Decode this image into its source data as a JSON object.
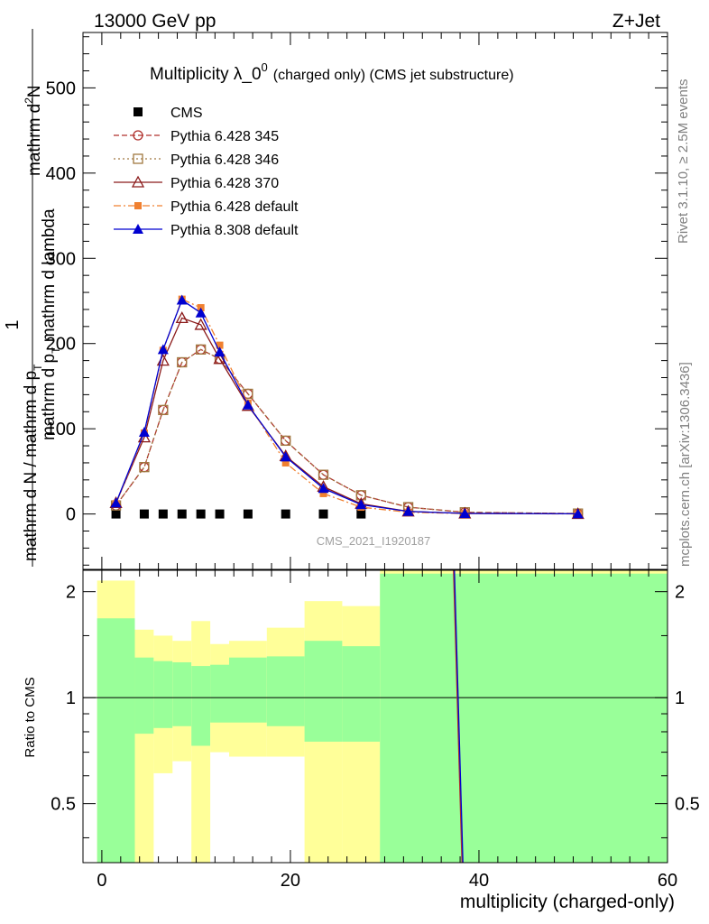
{
  "header": {
    "left": "13000 GeV pp",
    "right": "Z+Jet"
  },
  "side_labels": {
    "rivet": "Rivet 3.1.10, ≥ 2.5M events",
    "mcplots": "mcplots.cern.ch [arXiv:1306.3436]"
  },
  "chart_data": [
    {
      "type": "line",
      "title": "Multiplicity λ_0",
      "title_sup": "0",
      "subtitle": "(charged only) (CMS jet substructure)",
      "ylabel_top": "mathrm d",
      "ylabel_sup": "2",
      "ylabel_top_n": "N",
      "ylabel_bottom": "mathrm d p",
      "ylabel_bottom_sub": "T",
      "ylabel_bottom_rest": " mathrm d lambda",
      "ylabel_factor": "1",
      "ylabel_den": "mathrm d N / mathrm d p",
      "ylabel_den_sub": "T",
      "watermark": "CMS_2021_I1920187",
      "xlim": [
        -2,
        60
      ],
      "ylim": [
        -65,
        565
      ],
      "yticks": [
        0,
        100,
        200,
        300,
        400,
        500
      ],
      "grid": false,
      "legend_position": "top-left",
      "series": [
        {
          "name": "CMS",
          "color": "#000000",
          "marker": "square",
          "dash": "none",
          "x": [
            1.5,
            4.5,
            6.5,
            8.5,
            10.5,
            12.5,
            15.5,
            19.5,
            23.5,
            27.5
          ],
          "y": [
            0,
            0,
            0,
            0,
            0,
            0,
            0,
            0,
            0,
            0
          ]
        },
        {
          "name": "Pythia 6.428 345",
          "color": "#b0302c",
          "marker": "circle-open",
          "dash": "6,3",
          "x": [
            1.5,
            4.5,
            6.5,
            8.5,
            10.5,
            12.5,
            15.5,
            19.5,
            23.5,
            27.5,
            32.5,
            38.5,
            50.5
          ],
          "y": [
            10,
            55,
            122,
            178,
            193,
            182,
            141,
            86,
            46,
            22,
            8,
            2,
            0.5
          ]
        },
        {
          "name": "Pythia 6.428 346",
          "color": "#a07840",
          "marker": "square-open",
          "dash": "2,3",
          "x": [
            1.5,
            4.5,
            6.5,
            8.5,
            10.5,
            12.5,
            15.5,
            19.5,
            23.5,
            27.5,
            32.5,
            38.5,
            50.5
          ],
          "y": [
            10,
            55,
            122,
            178,
            193,
            182,
            141,
            86,
            46,
            22,
            8,
            2,
            0.5
          ]
        },
        {
          "name": "Pythia 6.428 370",
          "color": "#8b1a1a",
          "marker": "triangle-open",
          "dash": "none",
          "x": [
            1.5,
            4.5,
            6.5,
            8.5,
            10.5,
            12.5,
            15.5,
            19.5,
            23.5,
            27.5,
            32.5,
            38.5,
            50.5
          ],
          "y": [
            13,
            90,
            180,
            230,
            222,
            182,
            127,
            68,
            32,
            12,
            3,
            0.7,
            0.2
          ]
        },
        {
          "name": "Pythia 6.428 default",
          "color": "#f08030",
          "marker": "square-filled",
          "dash": "8,3,2,3",
          "x": [
            1.5,
            4.5,
            6.5,
            8.5,
            10.5,
            12.5,
            15.5,
            19.5,
            23.5,
            27.5,
            32.5,
            38.5,
            50.5
          ],
          "y": [
            12,
            95,
            192,
            252,
            242,
            198,
            130,
            60,
            24,
            8,
            2,
            0.5,
            0.1
          ]
        },
        {
          "name": "Pythia 8.308 default",
          "color": "#0000d0",
          "marker": "triangle-filled",
          "dash": "none",
          "x": [
            1.5,
            4.5,
            6.5,
            8.5,
            10.5,
            12.5,
            15.5,
            19.5,
            23.5,
            27.5,
            32.5,
            38.5,
            50.5
          ],
          "y": [
            13,
            96,
            193,
            251,
            236,
            190,
            128,
            67,
            30,
            11,
            3,
            0.7,
            0.2
          ]
        }
      ]
    },
    {
      "type": "area",
      "ylabel": "Ratio to CMS",
      "xlabel": "multiplicity (charged-only)",
      "xlim": [
        -2,
        60
      ],
      "ylim": [
        0.34,
        2.3
      ],
      "scale": "log",
      "xticks": [
        0,
        20,
        40,
        60
      ],
      "yticks": [
        0.5,
        1,
        2
      ],
      "ytick_labels": [
        "0.5",
        "1",
        "2"
      ],
      "reference_line": 1,
      "bands": {
        "green_color": "#99ff99",
        "yellow_color": "#ffff99",
        "bins": [
          {
            "lo": -0.5,
            "hi": 3.5,
            "stat_lo": 0.3,
            "stat_hi": 1.68,
            "tot_lo": 0.3,
            "tot_hi": 2.15
          },
          {
            "lo": 3.5,
            "hi": 5.5,
            "stat_lo": 0.79,
            "stat_hi": 1.3,
            "tot_lo": 0.34,
            "tot_hi": 1.56
          },
          {
            "lo": 5.5,
            "hi": 7.5,
            "stat_lo": 0.82,
            "stat_hi": 1.27,
            "tot_lo": 0.61,
            "tot_hi": 1.5
          },
          {
            "lo": 7.5,
            "hi": 9.5,
            "stat_lo": 0.83,
            "stat_hi": 1.26,
            "tot_lo": 0.66,
            "tot_hi": 1.45
          },
          {
            "lo": 9.5,
            "hi": 11.5,
            "stat_lo": 0.73,
            "stat_hi": 1.23,
            "tot_lo": 0.33,
            "tot_hi": 1.65
          },
          {
            "lo": 11.5,
            "hi": 13.5,
            "stat_lo": 0.85,
            "stat_hi": 1.24,
            "tot_lo": 0.7,
            "tot_hi": 1.42
          },
          {
            "lo": 13.5,
            "hi": 17.5,
            "stat_lo": 0.85,
            "stat_hi": 1.3,
            "tot_lo": 0.68,
            "tot_hi": 1.45
          },
          {
            "lo": 17.5,
            "hi": 21.5,
            "stat_lo": 0.83,
            "stat_hi": 1.31,
            "tot_lo": 0.68,
            "tot_hi": 1.58
          },
          {
            "lo": 21.5,
            "hi": 25.5,
            "stat_lo": 0.75,
            "stat_hi": 1.45,
            "tot_lo": 0.34,
            "tot_hi": 1.88
          },
          {
            "lo": 25.5,
            "hi": 29.5,
            "stat_lo": 0.75,
            "stat_hi": 1.4,
            "tot_lo": 0.34,
            "tot_hi": 1.82
          },
          {
            "lo": 29.5,
            "hi": 60.0,
            "stat_lo": 0.3,
            "stat_hi": 2.25,
            "tot_lo": 0.3,
            "tot_hi": 3.0
          }
        ]
      },
      "mc_lines": [
        {
          "color": "#b0302c",
          "x": [
            37.3,
            38.2
          ],
          "y": [
            2.5,
            0.3
          ]
        },
        {
          "color": "#0000d0",
          "x": [
            37.4,
            38.3
          ],
          "y": [
            2.5,
            0.3
          ]
        }
      ]
    }
  ]
}
